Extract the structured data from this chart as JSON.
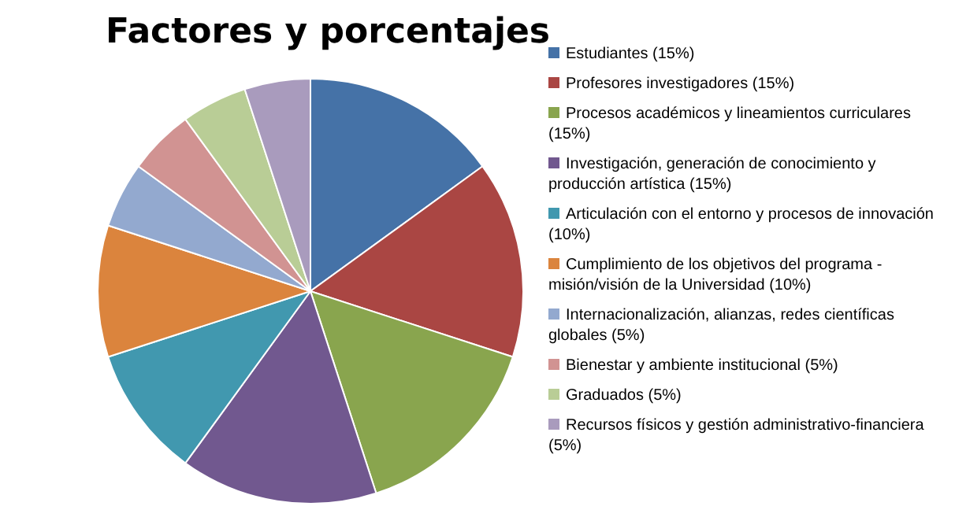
{
  "chart_data": {
    "type": "pie",
    "title": "Factores y porcentajes",
    "categories": [
      "Estudiantes (15%)",
      "Profesores investigadores (15%)",
      "Procesos académicos y lineamientos curriculares (15%)",
      "Investigación, generación de conocimiento y producción artística (15%)",
      "Articulación con el entorno y procesos de innovación (10%)",
      "Cumplimiento de los objetivos del programa - misión/visión de la Universidad (10%)",
      "Internacionalización, alianzas, redes científicas globales (5%)",
      "Bienestar y ambiente institucional (5%)",
      "Graduados (5%)",
      "Recursos físicos y gestión administrativo-financiera (5%)"
    ],
    "values": [
      15,
      15,
      15,
      15,
      10,
      10,
      5,
      5,
      5,
      5
    ],
    "colors": [
      "#4572a7",
      "#aa4643",
      "#89a54e",
      "#71588f",
      "#4198af",
      "#db843d",
      "#93a9cf",
      "#d19392",
      "#b9cd96",
      "#a99bbd"
    ],
    "legend": "right"
  }
}
